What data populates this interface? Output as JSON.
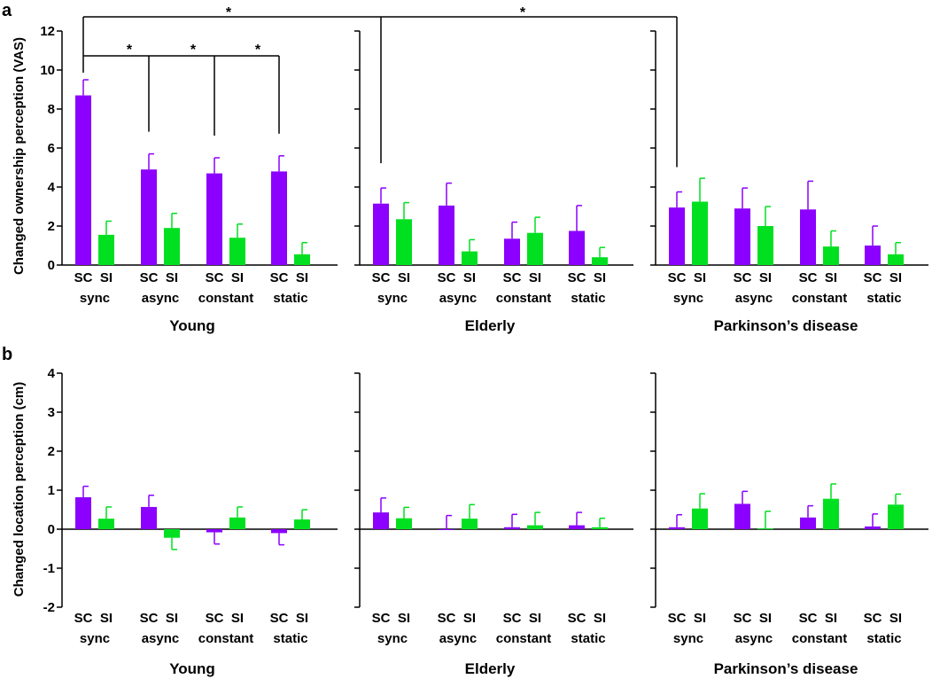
{
  "colors": {
    "sc": "#8B00FF",
    "si": "#00E020",
    "axis": "#000000"
  },
  "groups": [
    "Young",
    "Elderly",
    "Parkinson’s disease"
  ],
  "conditions": [
    "sync",
    "async",
    "constant",
    "static"
  ],
  "bar_labels": [
    "SC",
    "SI"
  ],
  "chart_data": [
    {
      "type": "bar",
      "panel": "a",
      "ylabel": "Changed ownership perception (VAS)",
      "ylim": [
        0,
        12
      ],
      "yticks": [
        0,
        2,
        4,
        6,
        8,
        10,
        12
      ],
      "groups": [
        {
          "name": "Young",
          "sc": {
            "values": [
              8.7,
              4.9,
              4.7,
              4.8
            ],
            "errors": [
              0.8,
              0.8,
              0.8,
              0.8
            ]
          },
          "si": {
            "values": [
              1.55,
              1.9,
              1.4,
              0.55
            ],
            "errors": [
              0.7,
              0.75,
              0.7,
              0.6
            ]
          }
        },
        {
          "name": "Elderly",
          "sc": {
            "values": [
              3.15,
              3.05,
              1.35,
              1.75
            ],
            "errors": [
              0.8,
              1.15,
              0.85,
              1.3
            ]
          },
          "si": {
            "values": [
              2.35,
              0.7,
              1.65,
              0.4
            ],
            "errors": [
              0.85,
              0.6,
              0.8,
              0.5
            ]
          }
        },
        {
          "name": "Parkinson’s disease",
          "sc": {
            "values": [
              2.95,
              2.9,
              2.85,
              1.0
            ],
            "errors": [
              0.8,
              1.05,
              1.45,
              1.0
            ]
          },
          "si": {
            "values": [
              3.25,
              2.0,
              0.95,
              0.55
            ],
            "errors": [
              1.2,
              1.0,
              0.8,
              0.6
            ]
          }
        }
      ],
      "significance_marker": "*"
    },
    {
      "type": "bar",
      "panel": "b",
      "ylabel": "Changed location perception (cm)",
      "ylim": [
        -2,
        4
      ],
      "yticks": [
        -2,
        -1,
        0,
        1,
        2,
        3,
        4
      ],
      "groups": [
        {
          "name": "Young",
          "sc": {
            "values": [
              0.82,
              0.57,
              -0.08,
              -0.1
            ],
            "errors": [
              0.28,
              0.3,
              0.3,
              0.3
            ]
          },
          "si": {
            "values": [
              0.27,
              -0.22,
              0.3,
              0.25
            ],
            "errors": [
              0.3,
              0.3,
              0.27,
              0.25
            ]
          }
        },
        {
          "name": "Elderly",
          "sc": {
            "values": [
              0.43,
              0.0,
              0.05,
              0.1
            ],
            "errors": [
              0.37,
              0.35,
              0.33,
              0.33
            ]
          },
          "si": {
            "values": [
              0.28,
              0.27,
              0.1,
              0.05
            ],
            "errors": [
              0.28,
              0.36,
              0.33,
              0.23
            ]
          }
        },
        {
          "name": "Parkinson’s disease",
          "sc": {
            "values": [
              0.05,
              0.65,
              0.3,
              0.07
            ],
            "errors": [
              0.32,
              0.32,
              0.3,
              0.32
            ]
          },
          "si": {
            "values": [
              0.53,
              0.02,
              0.78,
              0.63
            ],
            "errors": [
              0.38,
              0.44,
              0.38,
              0.27
            ]
          }
        }
      ]
    }
  ]
}
